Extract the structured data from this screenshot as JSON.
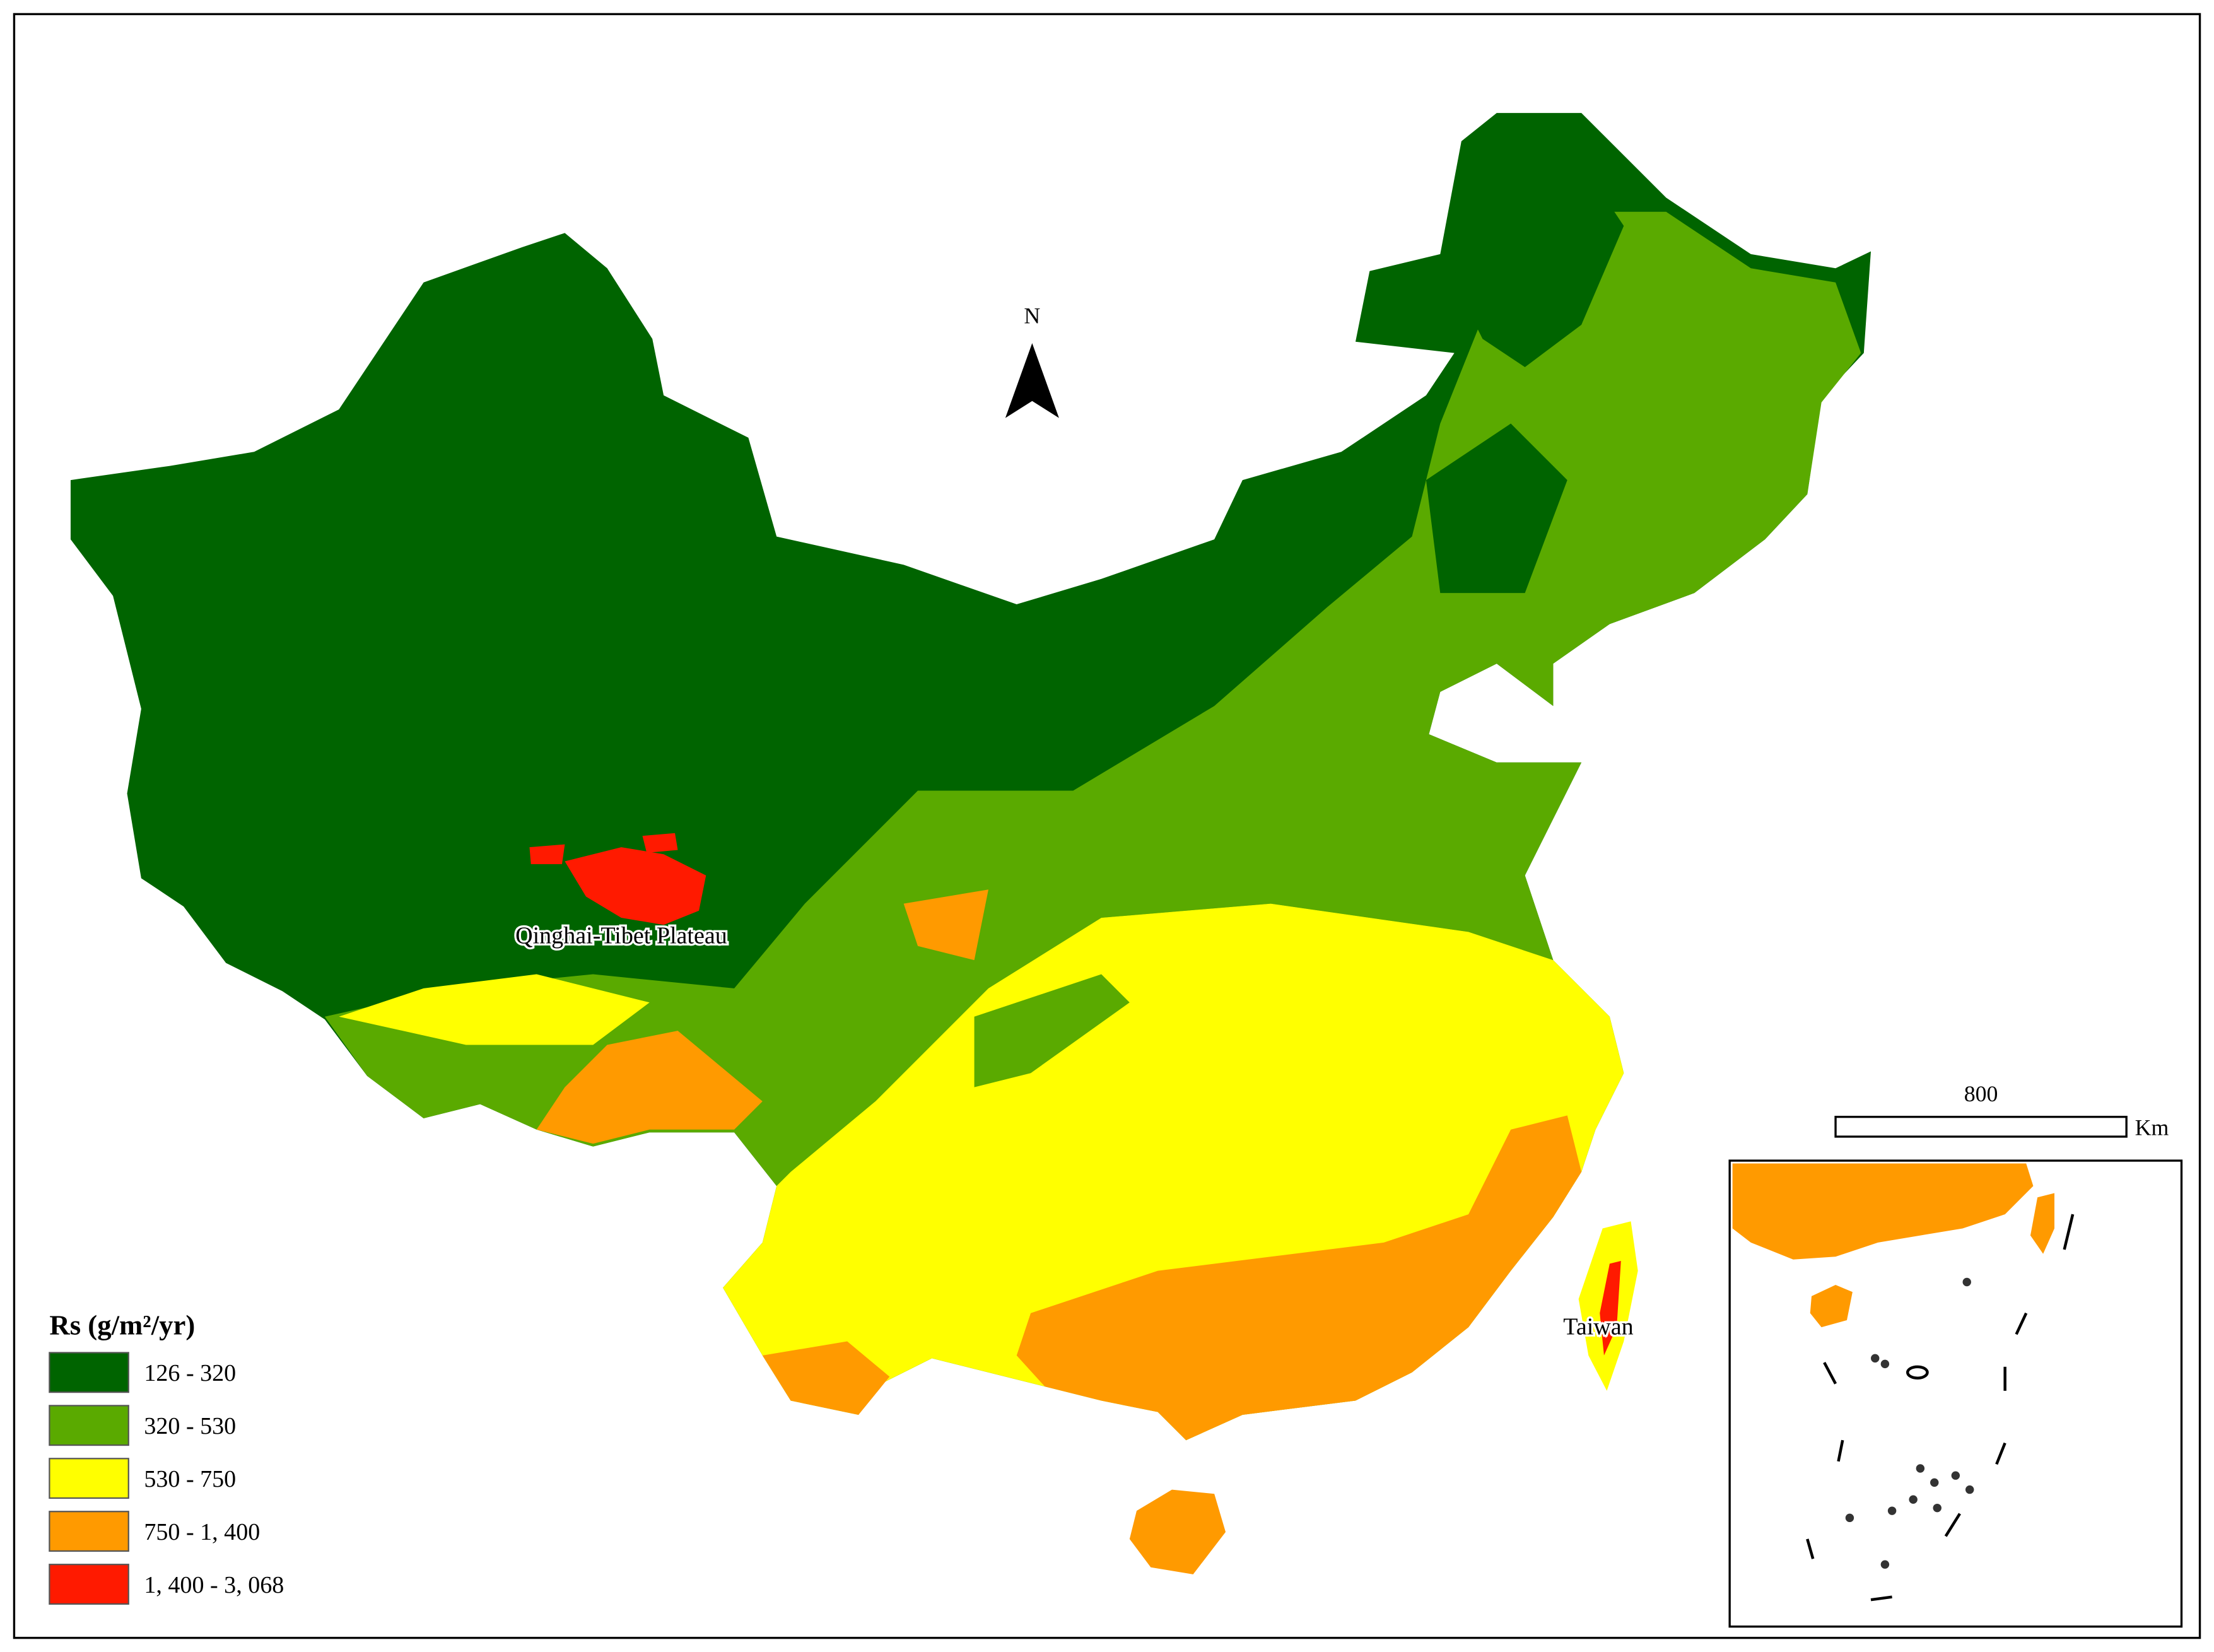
{
  "legend": {
    "title": "Rs (g/m²/yr)",
    "items": [
      {
        "label": "126 - 320",
        "color": "#006400"
      },
      {
        "label": "320 - 530",
        "color": "#5aaa00"
      },
      {
        "label": "530 - 750",
        "color": "#ffff00"
      },
      {
        "label": "750 - 1, 400",
        "color": "#ff9a00"
      },
      {
        "label": "1, 400 - 3, 068",
        "color": "#ff1a00"
      }
    ]
  },
  "annotations": {
    "plateau": "Qinghai-Tibet Plateau",
    "taiwan": "Taiwan"
  },
  "north_arrow": "N",
  "scale_bar": {
    "distance": "800",
    "unit": "Km"
  }
}
